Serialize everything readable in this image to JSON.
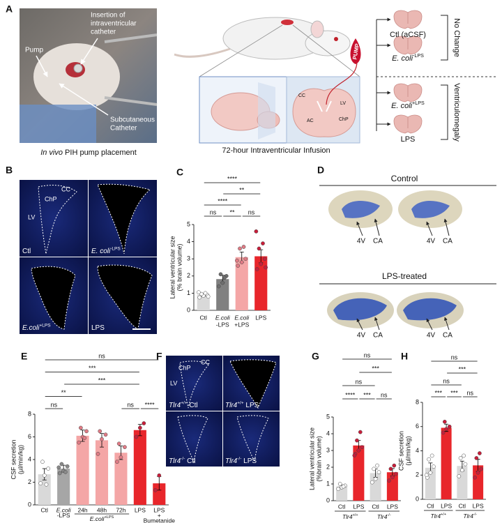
{
  "figure": {
    "panel_a": {
      "letter": "A",
      "photo_labels": {
        "pump": "Pump",
        "insertion": [
          "Insertion of",
          "intraventricular",
          "catheter"
        ],
        "subcutaneous": [
          "Subcutaneous",
          "Catheter"
        ]
      },
      "photo_caption": {
        "italic": "In vivo",
        "text": " PIH pump placement"
      },
      "diagram_labels": {
        "cc": "CC",
        "lv": "LV",
        "ac": "AC",
        "chp": "ChP",
        "pump": "PUMP"
      },
      "diagram_caption": "72-hour Intraventricular Infusion",
      "conditions": [
        {
          "text": "Ctl (aCSF)"
        },
        {
          "text": "E. coli",
          "sup": "-LPS"
        },
        {
          "text": "E. coli",
          "sup": "+LPS"
        },
        {
          "text": "LPS"
        }
      ],
      "outcomes": [
        "No Change",
        "Ventriculomegaly"
      ]
    },
    "panel_b": {
      "letter": "B",
      "labels": {
        "cc": "CC",
        "chp": "ChP",
        "lv": "LV"
      },
      "conditions": [
        {
          "text": "Ctl"
        },
        {
          "text": "E. coli",
          "sup": "-LPS"
        },
        {
          "text": "E.coli",
          "sup": "+LPS"
        },
        {
          "text": "LPS"
        }
      ]
    },
    "panel_d": {
      "letter": "D",
      "groups": [
        "Control",
        "LPS-treated"
      ],
      "arrow_labels": [
        "4V",
        "CA"
      ]
    },
    "panel_f": {
      "letter": "F",
      "labels": {
        "chp": "ChP",
        "cc": "CC",
        "lv": "LV"
      },
      "conditions": [
        {
          "text": "Tlr4",
          "sup": "+/+",
          "rest": " Ctl"
        },
        {
          "text": "Tlr4",
          "sup": "+/+",
          "rest": " LPS"
        },
        {
          "text": "Tlr4",
          "sup": "-/-",
          "rest": " Ctl"
        },
        {
          "text": "Tlr4",
          "sup": "-/-",
          "rest": " LPS"
        }
      ]
    }
  },
  "chart_data": [
    {
      "type": "bar",
      "letter": "C",
      "ylabel": [
        "Lateral ventricular size",
        "(% brain volume)"
      ],
      "categories": [
        [
          "Ctl"
        ],
        [
          "E.coli",
          "-LPS"
        ],
        [
          "E.coli",
          "+LPS"
        ],
        [
          "LPS"
        ]
      ],
      "values": [
        0.9,
        1.82,
        3.1,
        3.15
      ],
      "errors": [
        0.08,
        0.22,
        0.3,
        0.38
      ],
      "points": [
        [
          0.75,
          0.85,
          0.9,
          0.95,
          1.0,
          1.05,
          0.8
        ],
        [
          1.4,
          1.6,
          2.0,
          2.1,
          1.9
        ],
        [
          2.6,
          2.8,
          3.0,
          3.6,
          3.7,
          2.9
        ],
        [
          2.4,
          2.7,
          3.0,
          3.6,
          3.9,
          4.6,
          2.5
        ]
      ],
      "colors": [
        "#d9d9d9",
        "#808080",
        "#f4a6a6",
        "#e8262b"
      ],
      "point_colors": [
        "#ffffff",
        "#6e6e6e",
        "#e07b85",
        "#c81e3a"
      ],
      "ylim": [
        0,
        5
      ],
      "yticks": [
        0,
        1,
        2,
        3,
        4,
        5
      ],
      "annotations": [
        {
          "from": 0,
          "to": 1,
          "label": "ns"
        },
        {
          "from": 1,
          "to": 2,
          "label": "**"
        },
        {
          "from": 2,
          "to": 3,
          "label": "ns"
        },
        {
          "from": 0,
          "to": 2,
          "label": "****"
        },
        {
          "from": 1,
          "to": 3,
          "label": "**"
        },
        {
          "from": 0,
          "to": 3,
          "label": "****"
        }
      ]
    },
    {
      "type": "bar",
      "letter": "E",
      "ylabel": [
        "CSF secretion",
        "(µl/min/kg)"
      ],
      "categories": [
        [
          "Ctl"
        ],
        [
          "E.coli",
          "-LPS"
        ],
        [
          "24h"
        ],
        [
          "48h"
        ],
        [
          "72h"
        ],
        [
          "LPS"
        ],
        [
          "LPS",
          "+",
          "Bumetanide"
        ]
      ],
      "values": [
        2.7,
        3.2,
        6.1,
        5.7,
        4.6,
        6.6,
        1.9
      ],
      "errors": [
        0.5,
        0.3,
        0.5,
        0.6,
        0.6,
        0.5,
        0.6
      ],
      "points": [
        [
          1.9,
          2.6,
          3.2,
          3.8,
          1.8
        ],
        [
          2.8,
          3.0,
          3.4,
          3.6,
          2.9,
          3.3
        ],
        [
          5.5,
          6.0,
          6.5,
          6.8,
          5.9
        ],
        [
          4.5,
          5.8,
          6.2,
          6.5
        ],
        [
          3.8,
          4.2,
          5.1,
          5.4
        ],
        [
          6.0,
          6.8,
          7.2
        ],
        [
          1.3,
          2.6
        ]
      ],
      "colors": [
        "#d9d9d9",
        "#a6a6a6",
        "#f4a6a6",
        "#f4a6a6",
        "#f4a6a6",
        "#e8262b",
        "#e8262b"
      ],
      "point_colors": [
        "#ffffff",
        "#8a8a8a",
        "#e07b85",
        "#e07b85",
        "#e07b85",
        "#c81e3a",
        "#c81e3a"
      ],
      "ylim": [
        0,
        8
      ],
      "yticks": [
        0,
        2,
        4,
        6,
        8
      ],
      "groups": [
        {
          "label": {
            "text": "E.coli",
            "sup": "+LPS"
          },
          "from": 2,
          "to": 4
        }
      ],
      "annotations": [
        {
          "from": 0,
          "to": 1,
          "label": "ns"
        },
        {
          "from": 4,
          "to": 5,
          "label": "ns"
        },
        {
          "from": 5,
          "to": 6,
          "label": "****"
        },
        {
          "from": 0,
          "to": 2,
          "label": "**"
        },
        {
          "from": 1,
          "to": 5,
          "label": "***"
        },
        {
          "from": 0,
          "to": 5,
          "label": "***"
        },
        {
          "from": 0,
          "to": 6,
          "label": "ns"
        }
      ]
    },
    {
      "type": "bar",
      "letter": "G",
      "ylabel": [
        "Lateral ventricular size",
        "(%brain volume)"
      ],
      "categories": [
        [
          "Ctl"
        ],
        [
          "LPS"
        ],
        [
          "Ctl"
        ],
        [
          "LPS"
        ]
      ],
      "values": [
        0.85,
        3.3,
        1.65,
        1.7
      ],
      "errors": [
        0.08,
        0.3,
        0.25,
        0.22
      ],
      "points": [
        [
          0.7,
          0.8,
          0.9,
          1.0,
          0.85
        ],
        [
          2.8,
          3.0,
          3.2,
          3.6,
          4.1,
          2.7
        ],
        [
          1.1,
          1.3,
          1.7,
          1.9,
          2.1
        ],
        [
          1.2,
          1.4,
          1.6,
          1.9,
          2.1
        ]
      ],
      "colors": [
        "#d9d9d9",
        "#e8262b",
        "#d9d9d9",
        "#e8262b"
      ],
      "point_colors": [
        "#ffffff",
        "#c81e3a",
        "#ffffff",
        "#c81e3a"
      ],
      "ylim": [
        0,
        5
      ],
      "yticks": [
        0,
        1,
        2,
        3,
        4,
        5
      ],
      "groups": [
        {
          "label": {
            "text": "Tlr4",
            "sup": "+/+"
          },
          "from": 0,
          "to": 1
        },
        {
          "label": {
            "text": "Tlr4",
            "sup": "-/-"
          },
          "from": 2,
          "to": 3
        }
      ],
      "annotations": [
        {
          "from": 0,
          "to": 1,
          "label": "****"
        },
        {
          "from": 1,
          "to": 2,
          "label": "***"
        },
        {
          "from": 2,
          "to": 3,
          "label": "ns"
        },
        {
          "from": 0,
          "to": 2,
          "label": "ns"
        },
        {
          "from": 1,
          "to": 3,
          "label": "***"
        },
        {
          "from": 0,
          "to": 3,
          "label": "ns"
        }
      ]
    },
    {
      "type": "bar",
      "letter": "H",
      "ylabel": [
        "CSF secretion",
        "(µl/min/kg)"
      ],
      "categories": [
        [
          "Ctl"
        ],
        [
          "LPS"
        ],
        [
          "Ctl"
        ],
        [
          "LPS"
        ]
      ],
      "values": [
        2.6,
        5.9,
        2.75,
        2.8
      ],
      "errors": [
        0.4,
        0.3,
        0.4,
        0.5
      ],
      "points": [
        [
          1.8,
          2.2,
          2.7,
          3.3,
          3.6,
          2.0
        ],
        [
          5.5,
          5.8,
          6.0,
          6.4
        ],
        [
          1.9,
          2.4,
          2.9,
          3.4,
          3.6
        ],
        [
          1.8,
          2.2,
          2.5,
          3.4,
          3.8
        ]
      ],
      "colors": [
        "#d9d9d9",
        "#e8262b",
        "#d9d9d9",
        "#e8262b"
      ],
      "point_colors": [
        "#ffffff",
        "#c81e3a",
        "#ffffff",
        "#c81e3a"
      ],
      "ylim": [
        0,
        8
      ],
      "yticks": [
        0,
        2,
        4,
        6,
        8
      ],
      "groups": [
        {
          "label": {
            "text": "Tlr4",
            "sup": "+/+"
          },
          "from": 0,
          "to": 1
        },
        {
          "label": {
            "text": "Tlr4",
            "sup": "-/-"
          },
          "from": 2,
          "to": 3
        }
      ],
      "annotations": [
        {
          "from": 0,
          "to": 1,
          "label": "***"
        },
        {
          "from": 1,
          "to": 2,
          "label": "***"
        },
        {
          "from": 2,
          "to": 3,
          "label": "ns"
        },
        {
          "from": 0,
          "to": 2,
          "label": "ns"
        },
        {
          "from": 1,
          "to": 3,
          "label": "***"
        },
        {
          "from": 0,
          "to": 3,
          "label": "ns"
        }
      ]
    }
  ]
}
